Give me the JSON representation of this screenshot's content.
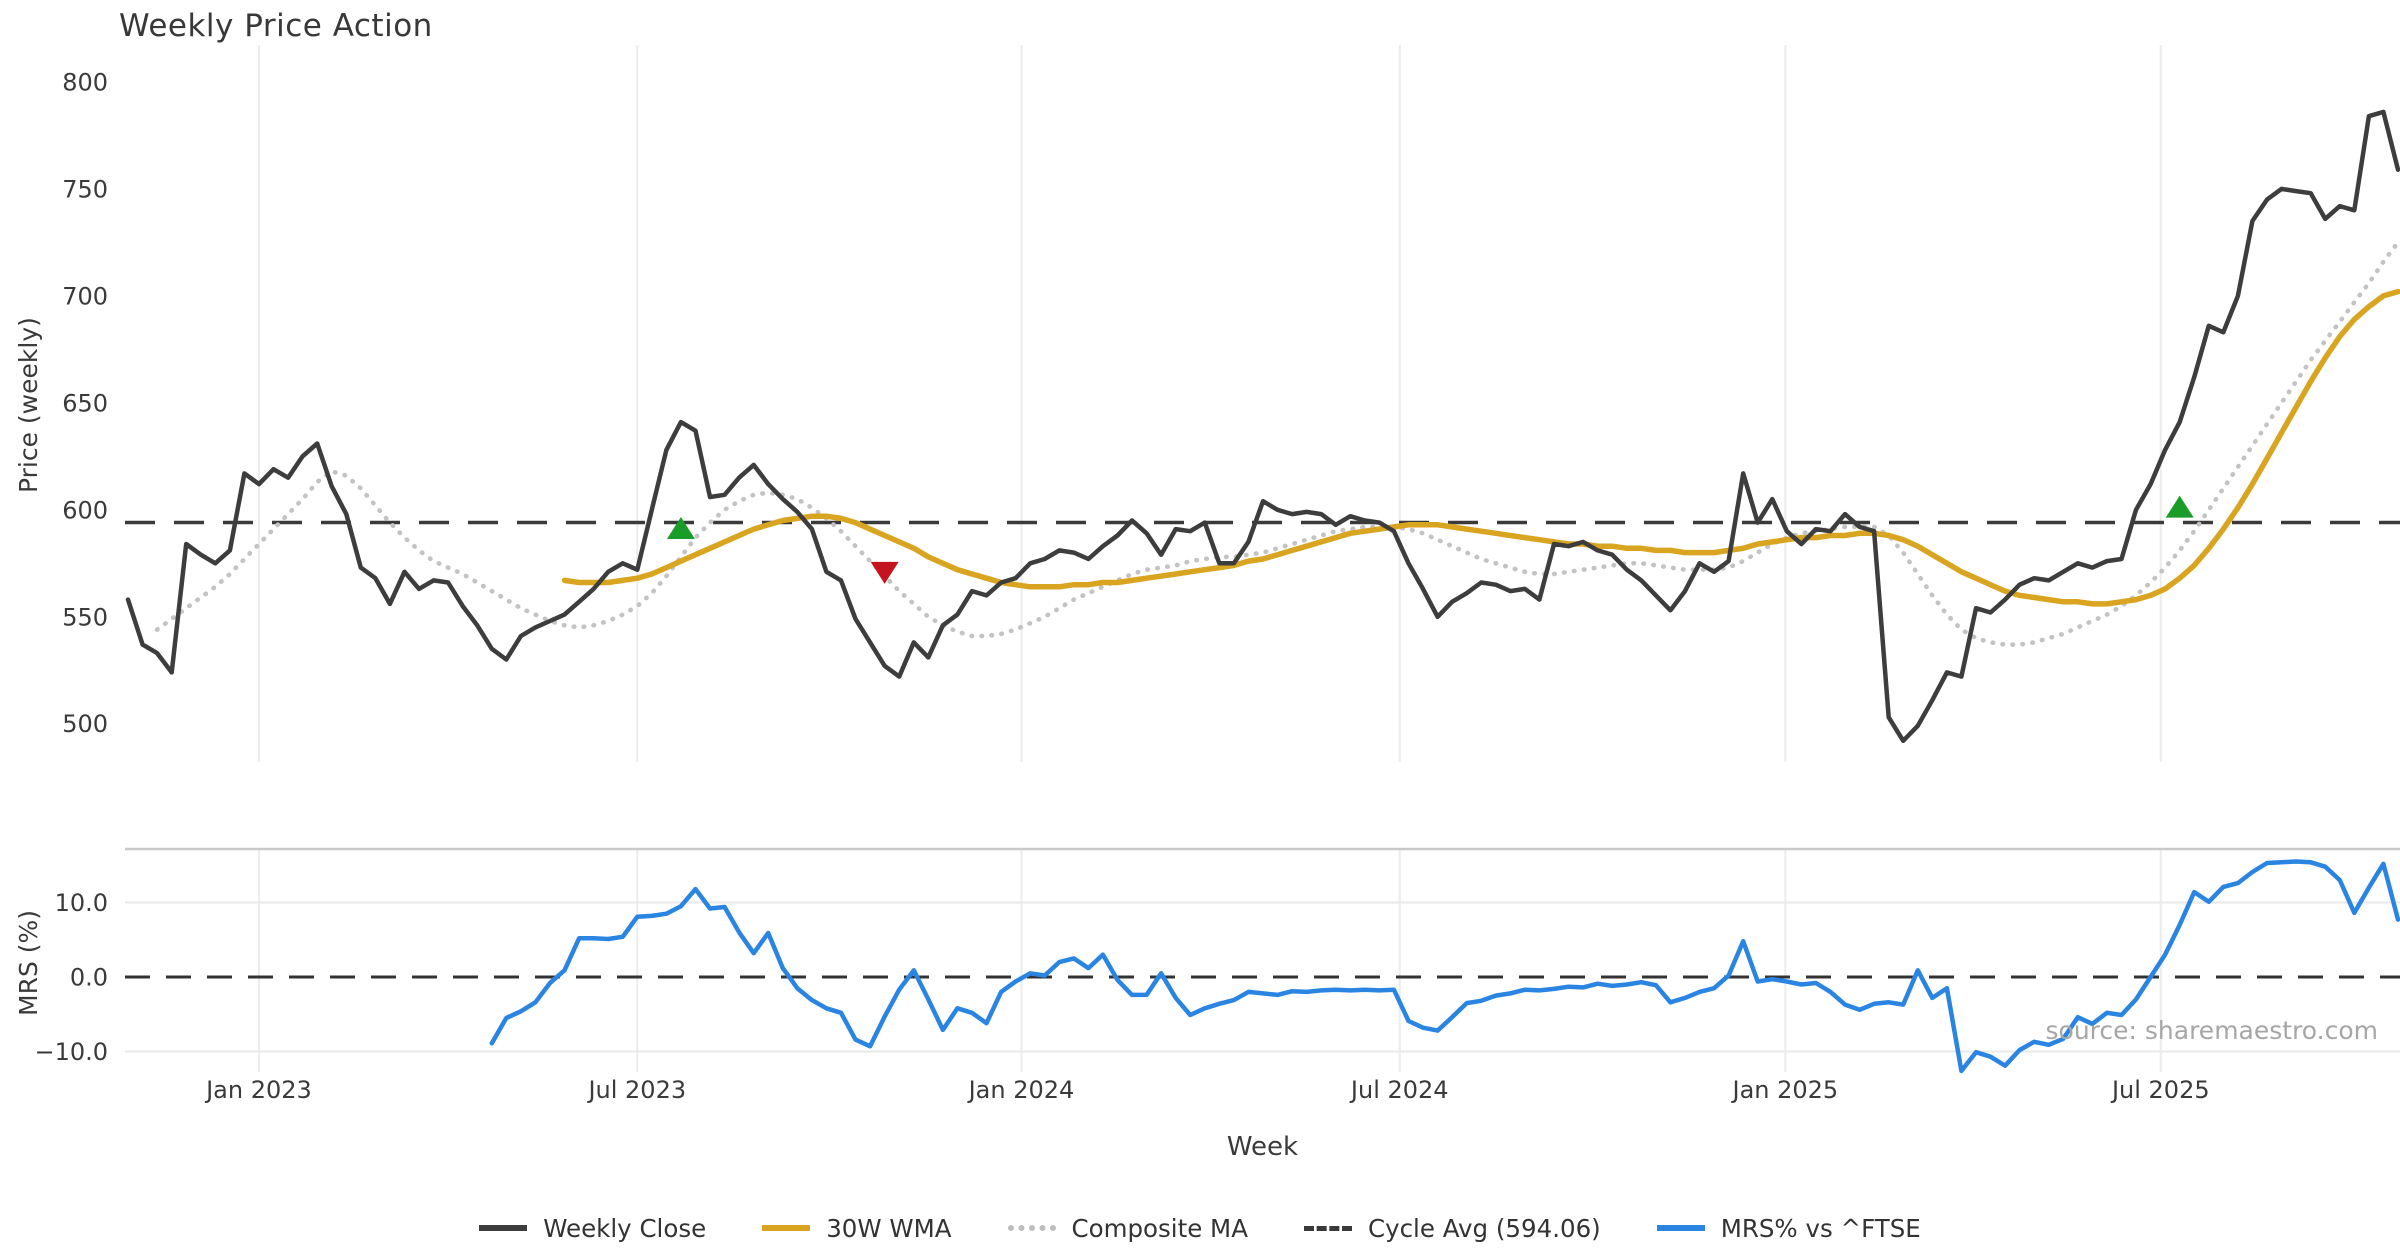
{
  "chart_data": {
    "type": "line",
    "title": "Weekly Price Action",
    "xlabel": "Week",
    "source_text": "source: sharemaestro.com",
    "x_tick_labels": [
      "Jan 2023",
      "Jul 2023",
      "Jan 2024",
      "Jul 2024",
      "Jan 2025",
      "Jul 2025"
    ],
    "x_tick_week_indices": [
      9.0,
      35.0,
      61.4,
      87.4,
      113.9,
      139.7
    ],
    "start_date": "2022-11-04",
    "frequency": "weekly",
    "weeks": 157,
    "price_panel": {
      "ylabel": "Price (weekly)",
      "y_ticks": [
        800,
        750,
        700,
        650,
        600,
        550,
        500
      ],
      "ylim": [
        482,
        817
      ],
      "cycle_avg": 594.06
    },
    "mrs_panel": {
      "ylabel": "MRS (%)",
      "y_ticks": [
        "10.0",
        "0.0",
        "−10.0"
      ],
      "y_tick_values": [
        10,
        0,
        -10
      ],
      "ylim": [
        -12.8,
        17.2
      ],
      "zero_line": 0
    },
    "legend": [
      {
        "label": "Weekly Close",
        "color": "#3d3d3d",
        "style": "solid"
      },
      {
        "label": "30W WMA",
        "color": "#d9a521",
        "style": "solid"
      },
      {
        "label": "Composite MA",
        "color": "#bdbdbd",
        "style": "dotted"
      },
      {
        "label": "Cycle Avg (594.06)",
        "color": "#3a3a3a",
        "style": "dashed"
      },
      {
        "label": "MRS% vs ^FTSE",
        "color": "#2a85e2",
        "style": "solid"
      }
    ],
    "colors": {
      "close": "#3d3d3d",
      "wma": "#d9a521",
      "composite": "#c3c3c3",
      "cycle_avg": "#3a3a3a",
      "mrs": "#2a85e2",
      "buy_marker": "#199c28",
      "sell_marker": "#c41420",
      "gridline": "#ececec",
      "spine": "#c9c9c9",
      "text": "#3a3a3a"
    },
    "markers": [
      {
        "signal": "buy",
        "week_index": 38,
        "price": 591
      },
      {
        "signal": "sell",
        "week_index": 52,
        "price": 571
      },
      {
        "signal": "buy",
        "week_index": 141,
        "price": 601
      }
    ],
    "series": [
      {
        "name": "Weekly Close",
        "values": [
          558,
          537,
          533,
          524,
          584,
          579,
          575,
          581,
          617,
          612,
          619,
          615,
          625,
          631,
          611,
          598,
          573,
          568,
          556,
          571,
          563,
          567,
          566,
          555,
          546,
          535,
          530,
          541,
          545,
          548,
          551,
          557,
          563,
          571,
          575,
          572,
          600,
          628,
          641,
          637,
          606,
          607,
          615,
          621,
          612,
          605,
          599,
          591,
          571,
          567,
          549,
          538,
          527,
          522,
          538,
          531,
          546,
          551,
          562,
          560,
          566,
          568,
          575,
          577,
          581,
          580,
          577,
          583,
          588,
          595,
          589,
          579,
          591,
          590,
          594,
          575,
          575,
          585,
          604,
          600,
          598,
          599,
          598,
          593,
          597,
          595,
          594,
          590,
          575,
          563,
          550,
          557,
          561,
          566,
          565,
          562,
          563,
          558,
          584,
          583,
          585,
          581,
          579,
          572,
          567,
          560,
          553,
          562,
          575,
          571,
          576,
          617,
          594,
          605,
          590,
          584,
          591,
          590,
          598,
          592,
          590,
          503,
          492,
          499,
          511,
          524,
          522,
          554,
          552,
          558,
          565,
          568,
          567,
          571,
          575,
          573,
          576,
          577,
          600,
          612,
          628,
          641,
          662,
          686,
          683,
          700,
          735,
          745,
          750,
          749,
          748,
          736,
          742,
          740,
          784,
          786,
          759
        ]
      },
      {
        "name": "30W WMA",
        "values": [
          null,
          null,
          null,
          null,
          null,
          null,
          null,
          null,
          null,
          null,
          null,
          null,
          null,
          null,
          null,
          null,
          null,
          null,
          null,
          null,
          null,
          null,
          null,
          null,
          null,
          null,
          null,
          null,
          null,
          null,
          567,
          566,
          566,
          566,
          567,
          568,
          570,
          573,
          576,
          579,
          582,
          585,
          588,
          591,
          593,
          595,
          596,
          597,
          597,
          596,
          594,
          591,
          588,
          585,
          582,
          578,
          575,
          572,
          570,
          568,
          566,
          565,
          564,
          564,
          564,
          565,
          565,
          566,
          566,
          567,
          568,
          569,
          570,
          571,
          572,
          573,
          574,
          576,
          577,
          579,
          581,
          583,
          585,
          587,
          589,
          590,
          591,
          592,
          593,
          593,
          593,
          592,
          591,
          590,
          589,
          588,
          587,
          586,
          585,
          584,
          584,
          583,
          583,
          582,
          582,
          581,
          581,
          580,
          580,
          580,
          581,
          582,
          584,
          585,
          586,
          587,
          587,
          588,
          588,
          589,
          589,
          588,
          586,
          583,
          579,
          575,
          571,
          568,
          565,
          562,
          560,
          559,
          558,
          557,
          557,
          556,
          556,
          557,
          558,
          560,
          563,
          568,
          574,
          582,
          591,
          601,
          612,
          624,
          636,
          648,
          660,
          671,
          681,
          689,
          695,
          700,
          702
        ]
      },
      {
        "name": "Composite MA",
        "values": [
          null,
          null,
          544,
          549,
          554,
          559,
          564,
          570,
          577,
          584,
          591,
          598,
          605,
          613,
          618,
          616,
          610,
          602,
          594,
          587,
          581,
          576,
          573,
          570,
          566,
          562,
          558,
          554,
          551,
          548,
          546,
          545,
          546,
          548,
          551,
          555,
          561,
          569,
          578,
          587,
          594,
          600,
          604,
          607,
          608,
          607,
          605,
          601,
          596,
          590,
          583,
          576,
          569,
          562,
          556,
          550,
          546,
          543,
          541,
          541,
          542,
          544,
          547,
          550,
          554,
          558,
          561,
          564,
          567,
          570,
          572,
          573,
          574,
          576,
          577,
          578,
          578,
          579,
          580,
          582,
          584,
          586,
          588,
          590,
          591,
          592,
          592,
          592,
          591,
          589,
          586,
          583,
          580,
          577,
          575,
          573,
          571,
          570,
          570,
          571,
          572,
          573,
          574,
          575,
          575,
          574,
          573,
          572,
          572,
          572,
          573,
          576,
          580,
          584,
          587,
          589,
          590,
          591,
          592,
          592,
          592,
          588,
          580,
          570,
          560,
          551,
          544,
          540,
          538,
          537,
          537,
          538,
          540,
          542,
          545,
          548,
          551,
          555,
          560,
          566,
          573,
          581,
          590,
          600,
          610,
          620,
          630,
          640,
          650,
          660,
          670,
          679,
          688,
          697,
          706,
          716,
          725
        ]
      },
      {
        "name": "MRS% vs ^FTSE",
        "values": [
          null,
          null,
          null,
          null,
          null,
          null,
          null,
          null,
          null,
          null,
          null,
          null,
          null,
          null,
          null,
          null,
          null,
          null,
          null,
          null,
          null,
          null,
          null,
          null,
          null,
          -8.9,
          -5.5,
          -4.6,
          -3.4,
          -0.8,
          0.9,
          5.2,
          5.2,
          5.1,
          5.4,
          8.1,
          8.2,
          8.5,
          9.5,
          11.8,
          9.2,
          9.4,
          6.0,
          3.2,
          5.9,
          1.2,
          -1.5,
          -3.1,
          -4.2,
          -4.8,
          -8.4,
          -9.3,
          -5.3,
          -1.7,
          0.9,
          -3.0,
          -7.1,
          -4.2,
          -4.8,
          -6.2,
          -2.0,
          -0.6,
          0.5,
          0.2,
          2.0,
          2.5,
          1.2,
          3.0,
          -0.4,
          -2.4,
          -2.4,
          0.5,
          -2.8,
          -5.1,
          -4.2,
          -3.6,
          -3.1,
          -2.0,
          -2.2,
          -2.4,
          -1.9,
          -2.0,
          -1.8,
          -1.7,
          -1.8,
          -1.7,
          -1.8,
          -1.7,
          -5.9,
          -6.8,
          -7.2,
          -5.4,
          -3.5,
          -3.2,
          -2.5,
          -2.2,
          -1.7,
          -1.8,
          -1.6,
          -1.3,
          -1.4,
          -0.9,
          -1.2,
          -1.0,
          -0.7,
          -1.1,
          -3.4,
          -2.8,
          -2.0,
          -1.5,
          0.2,
          4.8,
          -0.6,
          -0.3,
          -0.6,
          -1.0,
          -0.8,
          -2.0,
          -3.7,
          -4.4,
          -3.6,
          -3.4,
          -3.7,
          0.9,
          -2.8,
          -1.5,
          -12.6,
          -10.1,
          -10.7,
          -11.9,
          -9.8,
          -8.7,
          -9.1,
          -8.3,
          -5.4,
          -6.3,
          -4.8,
          -5.1,
          -3.0,
          0.0,
          3.0,
          7.0,
          11.4,
          10.1,
          12.1,
          12.6,
          14.1,
          15.3,
          15.4,
          15.5,
          15.4,
          14.8,
          13.0,
          8.6,
          12.0,
          15.2,
          7.7
        ]
      }
    ]
  }
}
